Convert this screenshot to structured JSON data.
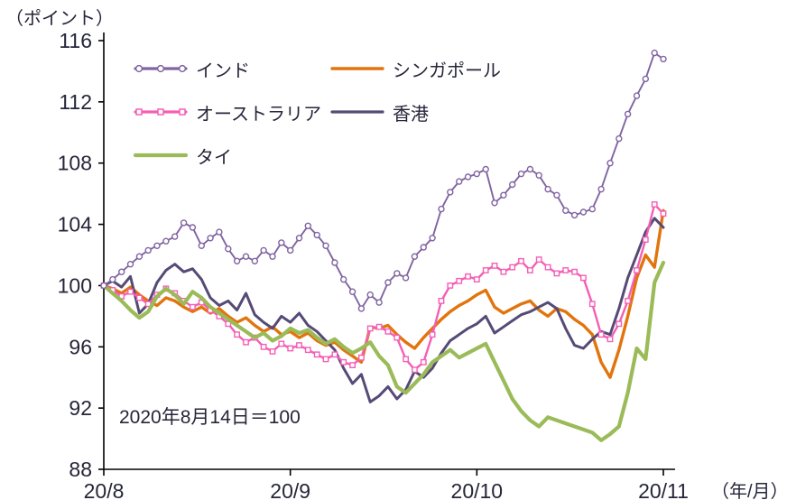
{
  "colors": {
    "text": "#26263a",
    "axis": "#000000",
    "background": "#ffffff"
  },
  "chart_data": {
    "type": "line",
    "ylabel": "（ポイント）",
    "xlabel": "（年/月）",
    "annotation": "2020年8月14日＝100",
    "ylim": [
      88,
      116
    ],
    "yticks": [
      88,
      92,
      96,
      100,
      104,
      108,
      112,
      116
    ],
    "xtick_labels": [
      "20/8",
      "20/9",
      "20/10",
      "20/11"
    ],
    "legend_rows": [
      [
        "インド",
        "シンガポール"
      ],
      [
        "オーストラリア",
        "香港"
      ],
      [
        "タイ"
      ]
    ],
    "series": [
      {
        "name": "インド",
        "color": "#8064A2",
        "marker": "circle",
        "width": 1.9,
        "values": [
          100.0,
          100.4,
          100.9,
          101.4,
          101.9,
          102.3,
          102.6,
          102.9,
          103.2,
          104.1,
          103.8,
          102.6,
          103.1,
          103.5,
          102.4,
          101.6,
          101.9,
          101.6,
          102.3,
          101.9,
          102.8,
          102.3,
          103.1,
          103.9,
          103.3,
          102.6,
          101.5,
          100.4,
          99.6,
          98.5,
          99.4,
          98.9,
          100.2,
          100.8,
          100.5,
          101.9,
          102.5,
          103.1,
          105.0,
          106.1,
          106.8,
          107.1,
          107.3,
          107.6,
          105.4,
          105.9,
          106.6,
          107.3,
          107.6,
          107.2,
          106.3,
          105.9,
          104.9,
          104.6,
          104.8,
          105.0,
          106.3,
          108.0,
          109.6,
          111.2,
          112.4,
          113.5,
          115.2,
          114.8
        ]
      },
      {
        "name": "シンガポール",
        "color": "#E2740D",
        "marker": "none",
        "width": 3.4,
        "values": [
          100.0,
          99.8,
          99.5,
          99.9,
          99.4,
          99.0,
          98.7,
          99.2,
          99.0,
          98.6,
          98.3,
          98.6,
          98.2,
          98.5,
          98.0,
          97.6,
          97.9,
          97.4,
          97.0,
          97.3,
          96.8,
          97.0,
          96.6,
          96.9,
          96.4,
          96.1,
          96.3,
          95.8,
          95.4,
          95.0,
          97.3,
          97.2,
          97.4,
          96.8,
          96.3,
          95.9,
          96.6,
          97.2,
          97.8,
          98.3,
          98.7,
          99.0,
          99.4,
          99.7,
          98.6,
          98.2,
          98.5,
          98.8,
          99.0,
          98.4,
          98.0,
          98.5,
          98.3,
          97.8,
          97.4,
          96.8,
          95.0,
          94.0,
          95.8,
          98.0,
          100.5,
          102.0,
          101.2,
          104.9
        ]
      },
      {
        "name": "オーストラリア",
        "color": "#F45FB5",
        "marker": "square",
        "width": 2.4,
        "values": [
          100.0,
          99.7,
          99.3,
          99.6,
          99.2,
          98.8,
          99.4,
          99.8,
          99.5,
          99.0,
          98.6,
          98.9,
          98.4,
          98.0,
          97.5,
          96.8,
          96.3,
          96.6,
          96.0,
          95.7,
          96.2,
          95.9,
          96.1,
          95.8,
          95.5,
          95.2,
          95.5,
          95.0,
          94.8,
          95.3,
          97.2,
          97.3,
          97.0,
          96.6,
          95.2,
          94.5,
          95.0,
          96.8,
          99.0,
          100.0,
          100.3,
          100.6,
          100.4,
          101.0,
          101.3,
          100.9,
          101.2,
          101.6,
          101.0,
          101.7,
          101.2,
          100.8,
          101.0,
          100.9,
          100.5,
          98.8,
          96.8,
          96.5,
          97.5,
          99.0,
          101.0,
          103.0,
          105.3,
          104.7
        ]
      },
      {
        "name": "香港",
        "color": "#564A76",
        "marker": "none",
        "width": 3.0,
        "values": [
          100.0,
          100.3,
          99.9,
          100.6,
          98.2,
          98.8,
          100.2,
          101.0,
          101.4,
          100.9,
          101.1,
          100.4,
          99.2,
          98.7,
          99.0,
          98.4,
          99.5,
          98.1,
          97.6,
          97.2,
          98.0,
          97.6,
          98.2,
          97.4,
          97.0,
          96.4,
          95.8,
          94.6,
          93.6,
          94.2,
          92.4,
          92.8,
          93.4,
          92.6,
          93.2,
          94.4,
          94.0,
          94.6,
          95.6,
          96.4,
          96.8,
          97.2,
          97.5,
          98.0,
          96.9,
          97.3,
          97.7,
          98.1,
          98.3,
          98.6,
          98.9,
          98.5,
          97.2,
          96.1,
          95.9,
          96.5,
          97.0,
          96.8,
          98.5,
          100.5,
          102.0,
          103.5,
          104.4,
          103.8
        ]
      },
      {
        "name": "タイ",
        "color": "#9BBB59",
        "marker": "none",
        "width": 4.2,
        "values": [
          100.0,
          99.5,
          99.0,
          98.4,
          97.9,
          98.3,
          99.3,
          99.8,
          99.4,
          98.8,
          99.6,
          99.2,
          98.6,
          98.2,
          97.8,
          97.4,
          97.0,
          96.6,
          96.9,
          96.4,
          96.7,
          97.2,
          96.9,
          97.1,
          96.6,
          96.2,
          96.5,
          96.0,
          95.6,
          95.9,
          96.3,
          95.4,
          94.8,
          93.4,
          93.0,
          93.6,
          94.2,
          95.0,
          95.4,
          95.8,
          95.3,
          95.6,
          95.9,
          96.2,
          95.0,
          93.8,
          92.6,
          91.8,
          91.2,
          90.8,
          91.4,
          91.2,
          91.0,
          90.8,
          90.6,
          90.4,
          89.9,
          90.3,
          90.8,
          93.0,
          95.9,
          95.2,
          100.2,
          101.5
        ]
      }
    ]
  }
}
